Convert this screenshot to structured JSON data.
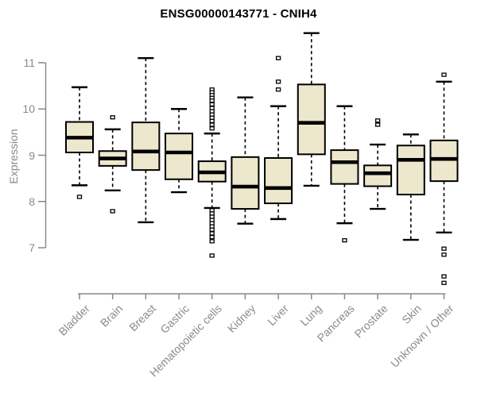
{
  "window": {
    "title": "ENSG00000143771 - CNIH4"
  },
  "chart_data": {
    "type": "box",
    "title": "ENSG00000143771 - CNIH4",
    "ylabel": "Expression",
    "xlabel": "",
    "grid": false,
    "legend": false,
    "y_axis": {
      "min": 7,
      "max": 11,
      "ticks": [
        11,
        10,
        9,
        8,
        7
      ]
    },
    "categories": [
      "Bladder",
      "Brain",
      "Breast",
      "Gastric",
      "Hematopoietic cells",
      "Kidney",
      "Liver",
      "Lung",
      "Pancreas",
      "Prostate",
      "Skin",
      "Unknown / Other"
    ],
    "boxes": [
      {
        "name": "Bladder",
        "whislo": 8.35,
        "q1": 9.06,
        "med": 9.38,
        "q3": 9.72,
        "whishi": 10.47,
        "outliers": [
          8.1
        ]
      },
      {
        "name": "Brain",
        "whislo": 8.24,
        "q1": 8.77,
        "med": 8.93,
        "q3": 9.09,
        "whishi": 9.56,
        "outliers": [
          9.82,
          7.79
        ]
      },
      {
        "name": "Breast",
        "whislo": 7.55,
        "q1": 8.68,
        "med": 9.08,
        "q3": 9.71,
        "whishi": 11.1,
        "outliers": []
      },
      {
        "name": "Gastric",
        "whislo": 8.2,
        "q1": 8.48,
        "med": 9.06,
        "q3": 9.47,
        "whishi": 10.0,
        "outliers": []
      },
      {
        "name": "Hematopoietic cells",
        "whislo": 7.86,
        "q1": 8.43,
        "med": 8.63,
        "q3": 8.87,
        "whishi": 9.47,
        "outliers": [
          10.42,
          10.36,
          10.3,
          10.24,
          10.18,
          10.1,
          10.02,
          9.95,
          9.88,
          9.81,
          9.74,
          9.66,
          9.58,
          7.81,
          7.74,
          7.67,
          7.6,
          7.53,
          7.46,
          7.39,
          7.31,
          7.23,
          7.14,
          6.83
        ]
      },
      {
        "name": "Kidney",
        "whislo": 7.52,
        "q1": 7.84,
        "med": 8.32,
        "q3": 8.96,
        "whishi": 10.25,
        "outliers": []
      },
      {
        "name": "Liver",
        "whislo": 7.62,
        "q1": 7.96,
        "med": 8.29,
        "q3": 8.94,
        "whishi": 10.06,
        "outliers": [
          11.1,
          10.59,
          10.42
        ]
      },
      {
        "name": "Lung",
        "whislo": 8.34,
        "q1": 9.02,
        "med": 9.7,
        "q3": 10.53,
        "whishi": 11.64,
        "outliers": []
      },
      {
        "name": "Pancreas",
        "whislo": 7.53,
        "q1": 8.38,
        "med": 8.85,
        "q3": 9.11,
        "whishi": 10.06,
        "outliers": [
          7.16
        ]
      },
      {
        "name": "Prostate",
        "whislo": 7.84,
        "q1": 8.33,
        "med": 8.61,
        "q3": 8.78,
        "whishi": 9.23,
        "outliers": [
          9.75,
          9.66
        ]
      },
      {
        "name": "Skin",
        "whislo": 7.17,
        "q1": 8.15,
        "med": 8.9,
        "q3": 9.21,
        "whishi": 9.45,
        "outliers": []
      },
      {
        "name": "Unknown / Other",
        "whislo": 7.33,
        "q1": 8.44,
        "med": 8.92,
        "q3": 9.32,
        "whishi": 10.59,
        "outliers": [
          10.74,
          6.98,
          6.85,
          6.38,
          6.24
        ]
      }
    ],
    "colors": {
      "box_fill": "#EDE7CD",
      "box_stroke": "#000000",
      "median": "#000000",
      "axis": "#898989",
      "tick_label": "#8a8a8a",
      "title": "#000000",
      "outlier_fill": "#ffffff"
    }
  }
}
